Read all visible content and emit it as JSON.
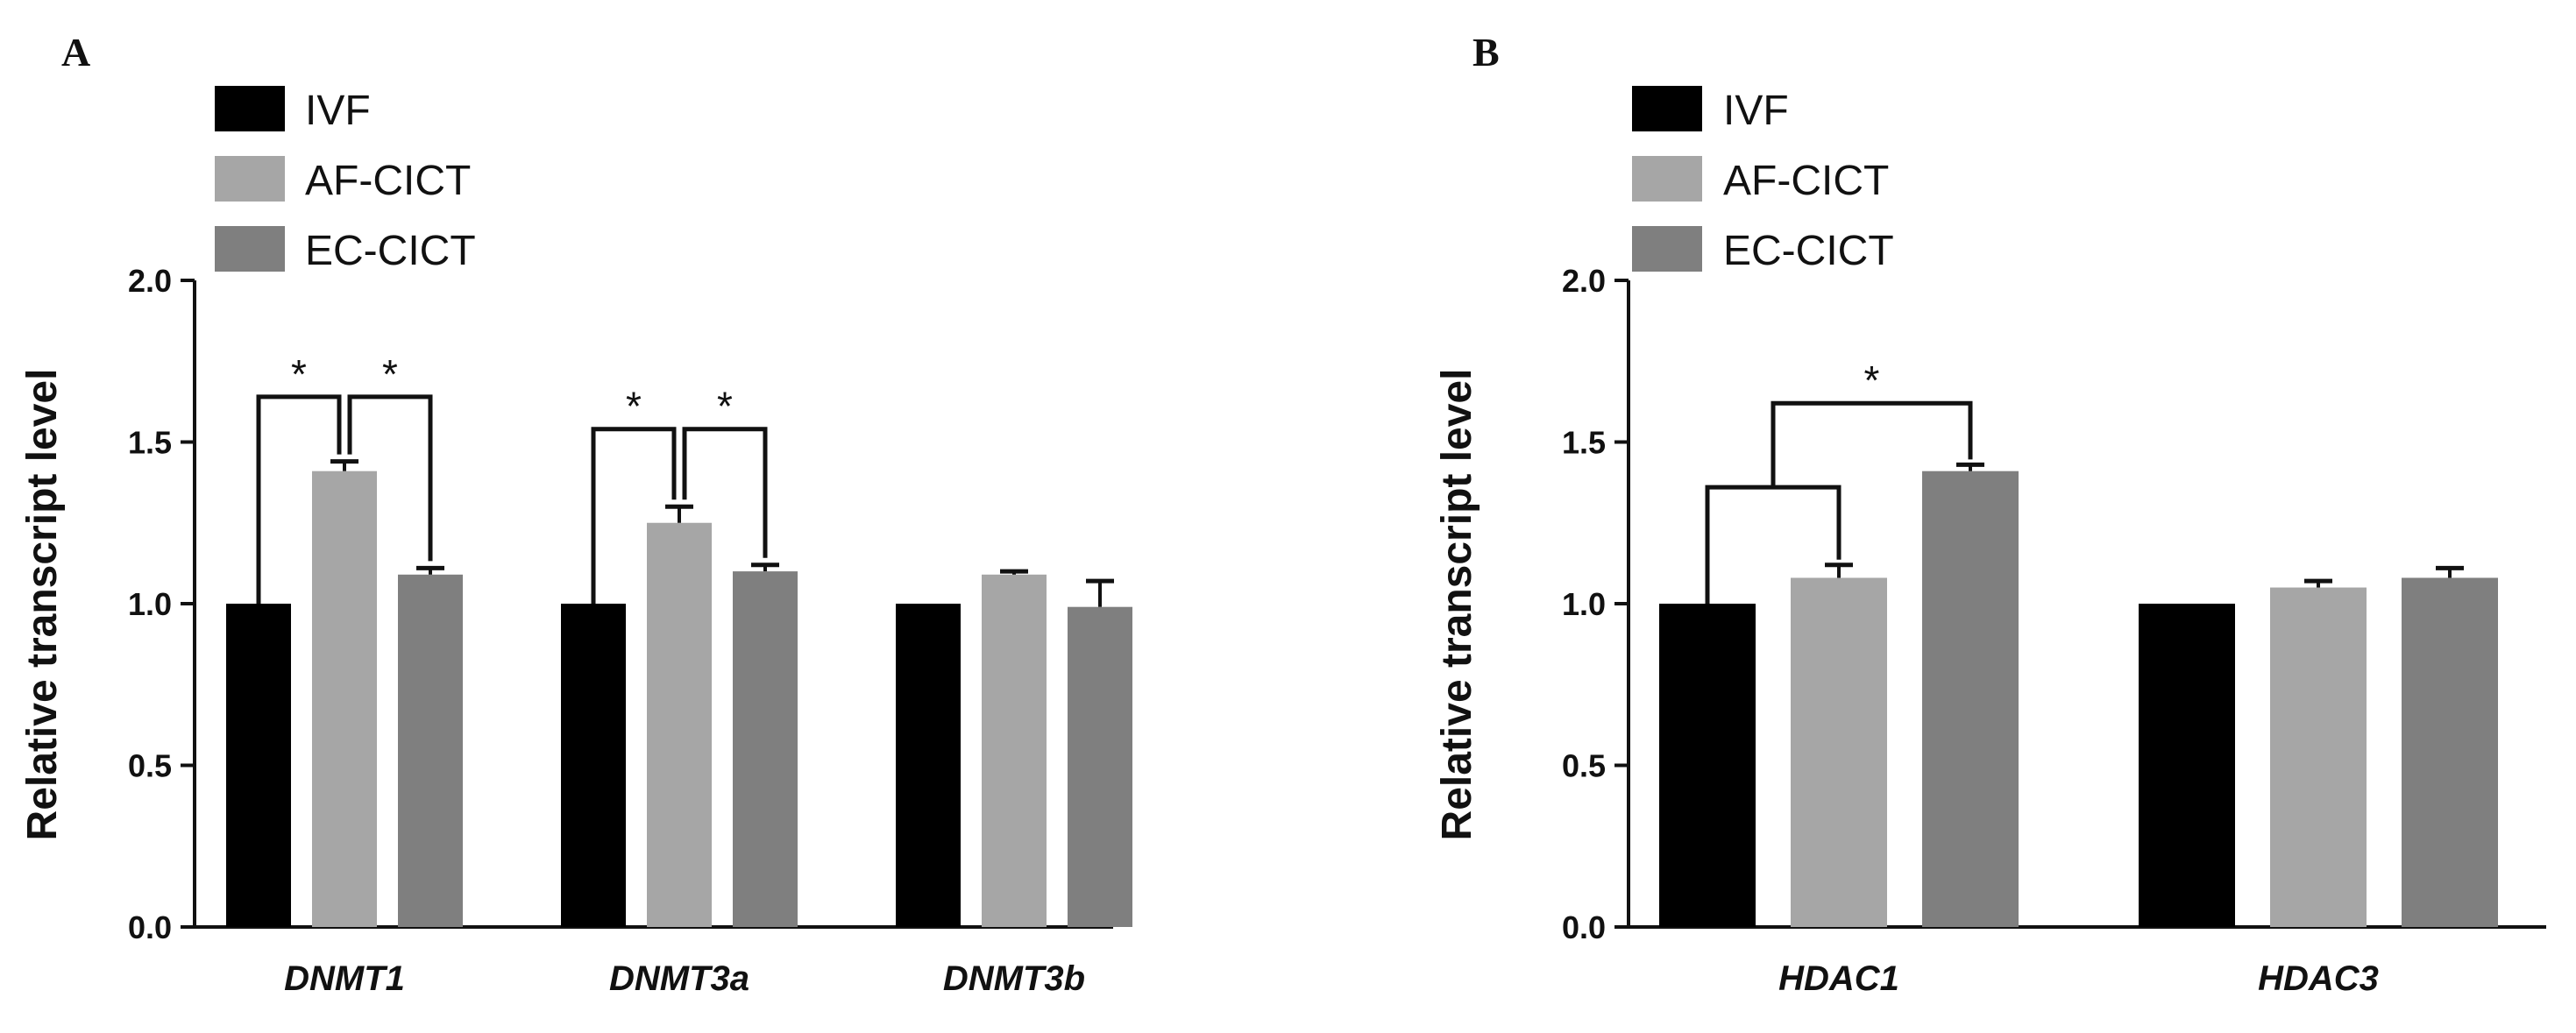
{
  "figure": {
    "series_colors": {
      "IVF": "#000000",
      "AF-CICT": "#a6a6a6",
      "EC-CICT": "#7f7f7f"
    }
  },
  "chart_data": [
    {
      "panel": "A",
      "type": "bar",
      "legend": [
        "IVF",
        "AF-CICT",
        "EC-CICT"
      ],
      "ylabel": "Relative transcript level",
      "xlabel": "",
      "ylim": [
        0,
        2.0
      ],
      "yticks": [
        "0.0",
        "0.5",
        "1.0",
        "1.5",
        "2.0"
      ],
      "categories": [
        "DNMT1",
        "DNMT3a",
        "DNMT3b"
      ],
      "series": [
        {
          "name": "IVF",
          "values": [
            1.0,
            1.0,
            1.0
          ],
          "errors": [
            0,
            0,
            0
          ]
        },
        {
          "name": "AF-CICT",
          "values": [
            1.41,
            1.25,
            1.09
          ],
          "errors": [
            0.03,
            0.05,
            0.01
          ]
        },
        {
          "name": "EC-CICT",
          "values": [
            1.09,
            1.1,
            0.99
          ],
          "errors": [
            0.02,
            0.02,
            0.08
          ]
        }
      ],
      "significance": [
        {
          "category": 0,
          "from": 0,
          "to": 1,
          "label": "*"
        },
        {
          "category": 0,
          "from": 1,
          "to": 2,
          "label": "*"
        },
        {
          "category": 1,
          "from": 0,
          "to": 1,
          "label": "*"
        },
        {
          "category": 1,
          "from": 1,
          "to": 2,
          "label": "*"
        }
      ]
    },
    {
      "panel": "B",
      "type": "bar",
      "legend": [
        "IVF",
        "AF-CICT",
        "EC-CICT"
      ],
      "ylabel": "Relative transcript level",
      "xlabel": "",
      "ylim": [
        0,
        2.0
      ],
      "yticks": [
        "0.0",
        "0.5",
        "1.0",
        "1.5",
        "2.0"
      ],
      "categories": [
        "HDAC1",
        "HDAC3"
      ],
      "series": [
        {
          "name": "IVF",
          "values": [
            1.0,
            1.0
          ],
          "errors": [
            0,
            0
          ]
        },
        {
          "name": "AF-CICT",
          "values": [
            1.08,
            1.05
          ],
          "errors": [
            0.04,
            0.02
          ]
        },
        {
          "name": "EC-CICT",
          "values": [
            1.41,
            1.08
          ],
          "errors": [
            0.02,
            0.03
          ]
        }
      ],
      "significance": [
        {
          "category": 0,
          "group": [
            0,
            1
          ],
          "to": 2,
          "label": "*"
        }
      ]
    }
  ]
}
